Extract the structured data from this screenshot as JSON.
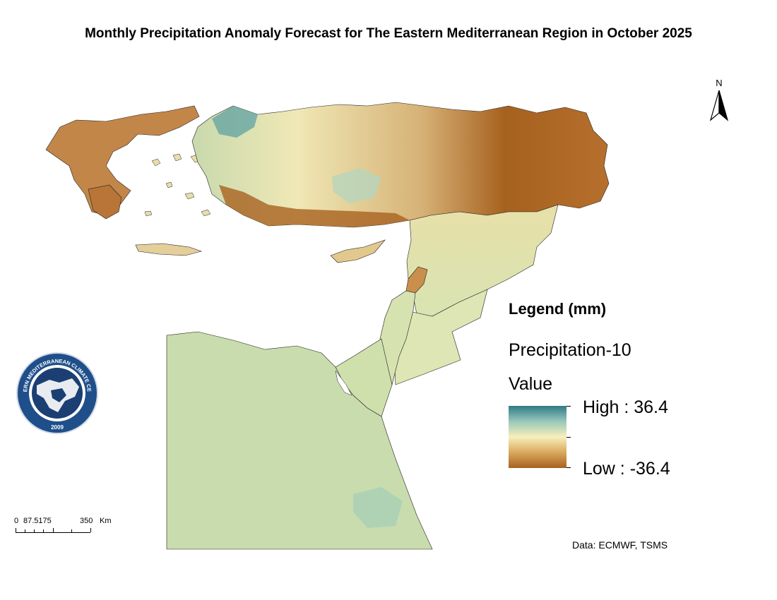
{
  "title": "Monthly Precipitation Anomaly Forecast for The Eastern Mediterranean Region in October 2025",
  "north_arrow": {
    "letter": "N",
    "icon": "north-arrow-icon"
  },
  "legend": {
    "heading": "Legend (mm)",
    "layer_name": "Precipitation-10",
    "field_name": "Value",
    "high_label": "High : 36.4",
    "low_label": "Low : -36.4",
    "high_value": 36.4,
    "low_value": -36.4,
    "colors": {
      "high": "#2f7b87",
      "mid_high": "#98c8ba",
      "mid": "#f8f0bc",
      "mid_low": "#d9a85d",
      "low": "#a7611f"
    }
  },
  "scalebar": {
    "labels": [
      "0",
      "87.5175",
      "350",
      "Km"
    ]
  },
  "credit": "Data: ECMWF, TSMS",
  "logo": {
    "text": "EASTERN MEDITERRANEAN CLIMATE CENTRE",
    "year": "2009",
    "icon": "emcc-logo-icon"
  },
  "map": {
    "colors": {
      "dry": "#a7611f",
      "dry_mid": "#c9905a",
      "neutral": "#f3efbf",
      "wet_mid": "#9ccbb8",
      "wet": "#2f7b87",
      "egypt": "#c9dcad"
    }
  }
}
